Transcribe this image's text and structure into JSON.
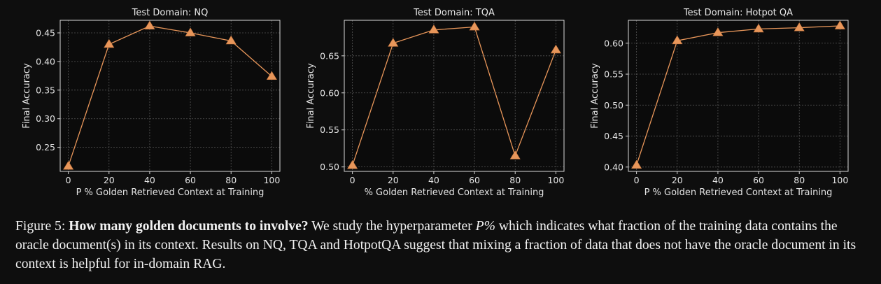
{
  "chart_data": [
    {
      "type": "line",
      "title": "Test Domain: NQ",
      "xlabel": "P % Golden Retrieved Context at Training",
      "ylabel": "Final Accuracy",
      "x": [
        0,
        20,
        40,
        60,
        80,
        100
      ],
      "series": [
        {
          "values": [
            0.217,
            0.43,
            0.462,
            0.45,
            0.436,
            0.374
          ]
        }
      ],
      "xlim": [
        -4,
        104
      ],
      "ylim": [
        0.208,
        0.472
      ],
      "xticks": [
        0,
        20,
        40,
        60,
        80,
        100
      ],
      "yticks": [
        0.25,
        0.3,
        0.35,
        0.4,
        0.45
      ],
      "ytick_labels": [
        "0.25",
        "0.30",
        "0.35",
        "0.40",
        "0.45"
      ],
      "grid": true,
      "marker": "triangle-up",
      "color": "#e8965a"
    },
    {
      "type": "line",
      "title": "Test Domain: TQA",
      "xlabel": "% Golden Retrieved Context at Training",
      "ylabel": "Final Accuracy",
      "x": [
        0,
        20,
        40,
        60,
        80,
        100
      ],
      "series": [
        {
          "values": [
            0.502,
            0.667,
            0.685,
            0.689,
            0.515,
            0.658
          ]
        }
      ],
      "xlim": [
        -4,
        104
      ],
      "ylim": [
        0.494,
        0.698
      ],
      "xticks": [
        0,
        20,
        40,
        60,
        80,
        100
      ],
      "yticks": [
        0.5,
        0.55,
        0.6,
        0.65
      ],
      "ytick_labels": [
        "0.50",
        "0.55",
        "0.60",
        "0.65"
      ],
      "grid": true,
      "marker": "triangle-up",
      "color": "#e8965a"
    },
    {
      "type": "line",
      "title": "Test Domain: Hotpot QA",
      "xlabel": "P % Golden Retrieved Context at Training",
      "ylabel": "Final Accuracy",
      "x": [
        0,
        20,
        40,
        60,
        80,
        100
      ],
      "series": [
        {
          "values": [
            0.403,
            0.604,
            0.617,
            0.623,
            0.625,
            0.628
          ]
        }
      ],
      "xlim": [
        -4,
        104
      ],
      "ylim": [
        0.393,
        0.637
      ],
      "xticks": [
        0,
        20,
        40,
        60,
        80,
        100
      ],
      "yticks": [
        0.4,
        0.45,
        0.5,
        0.55,
        0.6
      ],
      "ytick_labels": [
        "0.40",
        "0.45",
        "0.50",
        "0.55",
        "0.60"
      ],
      "grid": true,
      "marker": "triangle-up",
      "color": "#e8965a"
    }
  ],
  "caption": {
    "label": "Figure 5: ",
    "bold": "How many golden documents to involve?",
    "text_1": " We study the hyperparameter ",
    "math": "P%",
    "text_2": " which indicates what fraction of the training data contains the oracle document(s) in its context. Results on NQ, TQA and HotpotQA suggest that mixing a fraction of data that does not have the oracle document in its context is helpful for in-domain RAG."
  }
}
